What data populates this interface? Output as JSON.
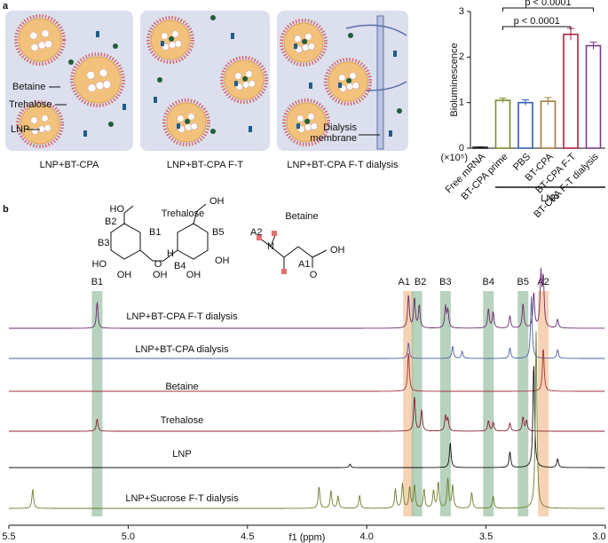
{
  "panel_a": {
    "label": "a",
    "captions": [
      "LNP+BT-CPA",
      "LNP+BT-CPA F-T",
      "LNP+BT-CPA F-T dialysis"
    ],
    "betaine": "Betaine",
    "trehalose": "Trehalose",
    "lnp": "LNP",
    "membrane_1": "Dialysis",
    "membrane_2": "membrane"
  },
  "panel_b": {
    "label": "b",
    "trehalose": "Trehalose",
    "betaine": "Betaine",
    "oh": "OH",
    "ho": "HO",
    "o": "O",
    "h": "H",
    "n": "N"
  },
  "chart_data": [
    {
      "type": "bar",
      "ylabel": "Bioluminescence",
      "yunit": "(×10⁵)",
      "categories": [
        "Free mRNA",
        "BT-CPA prime",
        "PBS",
        "BT-CPA",
        "BT-CPA F-T",
        "BT-CPA F-T dialysis"
      ],
      "values": [
        0.02,
        1.05,
        1.0,
        1.03,
        2.5,
        2.25
      ],
      "errors": [
        0.01,
        0.05,
        0.06,
        0.08,
        0.13,
        0.08
      ],
      "colors": [
        "#222222",
        "#7d8a2e",
        "#2f5fb3",
        "#a27b3c",
        "#b52040",
        "#7b3c8c"
      ],
      "ylim": [
        0,
        3
      ],
      "yticks": [
        0,
        1,
        2,
        3
      ],
      "annotations": [
        "p < 0.0001",
        "p < 0.0001"
      ],
      "group_label": "LNP"
    },
    {
      "type": "line",
      "xlabel": "f1 (ppm)",
      "xlim": [
        5.5,
        3.0
      ],
      "xticks": [
        {
          "value": 5.5,
          "label": "5.5"
        },
        {
          "value": 5.0,
          "label": "5.0"
        },
        4.5,
        {
          "value": 4.0,
          "label": "4.0"
        },
        3.5,
        {
          "value": 3.0,
          "label": "3.0"
        }
      ],
      "bands": [
        {
          "label": "B1",
          "x": 5.13,
          "color": "#9fc4a8"
        },
        {
          "label": "A1",
          "x": 3.825,
          "color": "#f4c49c"
        },
        {
          "label": "B2",
          "x": 3.79,
          "color": "#9fc4a8"
        },
        {
          "label": "B3",
          "x": 3.67,
          "color": "#9fc4a8"
        },
        {
          "label": "B4",
          "x": 3.49,
          "color": "#9fc4a8"
        },
        {
          "label": "B5",
          "x": 3.345,
          "color": "#9fc4a8"
        },
        {
          "label": "A2",
          "x": 3.26,
          "color": "#f4c49c"
        }
      ],
      "series": [
        {
          "name": "LNP+BT-CPA F-T dialysis",
          "color": "#6e2a6e",
          "x": [
            5.13,
            3.825,
            3.8,
            3.78,
            3.67,
            3.66,
            3.49,
            3.47,
            3.4,
            3.345,
            3.3,
            3.27,
            3.26,
            3.2
          ],
          "values": [
            30,
            38,
            34,
            26,
            24,
            20,
            22,
            18,
            14,
            28,
            40,
            60,
            55,
            10
          ]
        },
        {
          "name": "LNP+BT-CPA dialysis",
          "color": "#4b61a3",
          "x": [
            3.825,
            3.64,
            3.6,
            3.4,
            3.31,
            3.2
          ],
          "values": [
            18,
            14,
            8,
            12,
            70,
            10
          ]
        },
        {
          "name": "Betaine",
          "color": "#a3303c",
          "x": [
            3.825,
            3.26
          ],
          "values": [
            45,
            50
          ]
        },
        {
          "name": "Trehalose",
          "color": "#8c1f32",
          "x": [
            5.13,
            3.8,
            3.77,
            3.67,
            3.66,
            3.49,
            3.47,
            3.4,
            3.345,
            3.33
          ],
          "values": [
            14,
            40,
            24,
            17,
            14,
            12,
            10,
            9,
            16,
            12
          ]
        },
        {
          "name": "LNP",
          "color": "#111111",
          "x": [
            4.07,
            3.65,
            3.4,
            3.3,
            3.2
          ],
          "values": [
            4,
            28,
            18,
            120,
            10
          ]
        },
        {
          "name": "LNP+Sucrose F-T dialysis",
          "color": "#6e7d2c",
          "x": [
            5.4,
            4.2,
            4.15,
            4.12,
            4.03,
            3.88,
            3.85,
            3.82,
            3.8,
            3.76,
            3.72,
            3.7,
            3.66,
            3.64,
            3.56,
            3.47,
            3.29
          ],
          "values": [
            22,
            25,
            20,
            14,
            15,
            22,
            28,
            24,
            26,
            22,
            20,
            30,
            34,
            26,
            18,
            14,
            200
          ]
        }
      ]
    }
  ]
}
